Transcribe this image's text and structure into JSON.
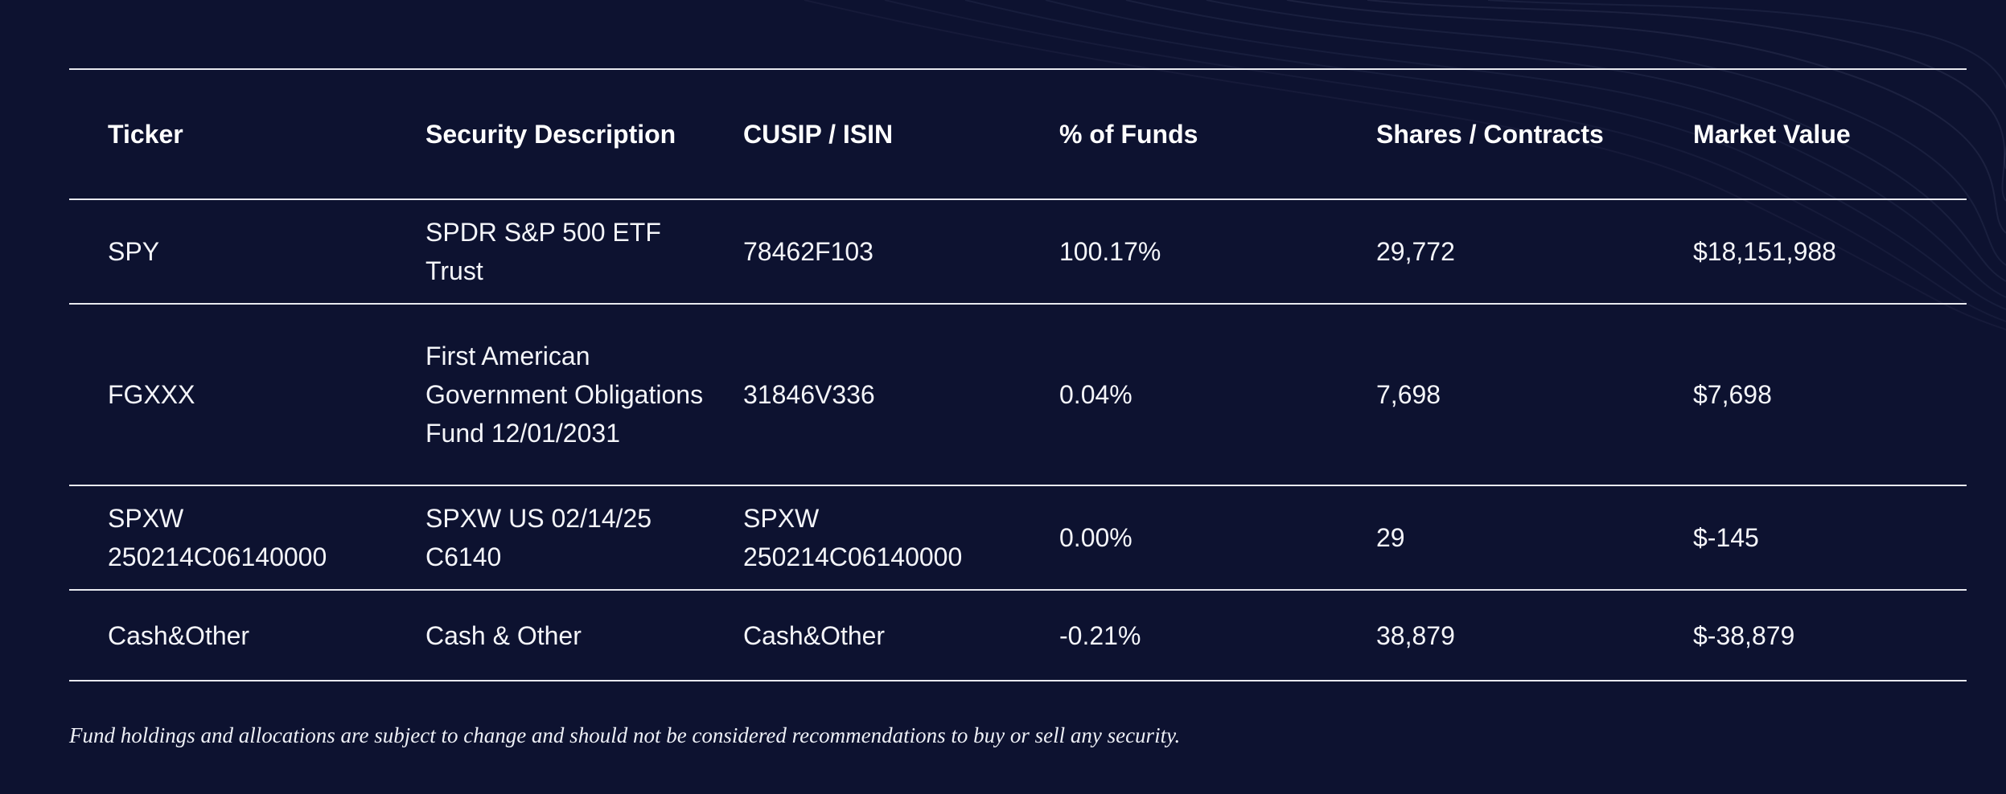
{
  "theme": {
    "background": "#0d1230",
    "text": "#ffffff",
    "rule": "#e8e9ef"
  },
  "table": {
    "headers": [
      "Ticker",
      "Security Description",
      "CUSIP / ISIN",
      "% of Funds",
      "Shares / Contracts",
      "Market Value"
    ],
    "rows": [
      [
        "SPY",
        "SPDR S&P 500 ETF Trust",
        "78462F103",
        "100.17%",
        "29,772",
        "$18,151,988"
      ],
      [
        "FGXXX",
        "First American Government Obligations Fund 12/01/2031",
        "31846V336",
        "0.04%",
        "7,698",
        "$7,698"
      ],
      [
        "SPXW 250214C06140000",
        "SPXW US 02/14/25 C6140",
        "SPXW 250214C06140000",
        "0.00%",
        "29",
        "$-145"
      ],
      [
        "Cash&Other",
        "Cash & Other",
        "Cash&Other",
        "-0.21%",
        "38,879",
        "$-38,879"
      ]
    ]
  },
  "disclaimer": "Fund holdings and allocations are subject to change and should not be considered recommendations to buy or sell any security."
}
